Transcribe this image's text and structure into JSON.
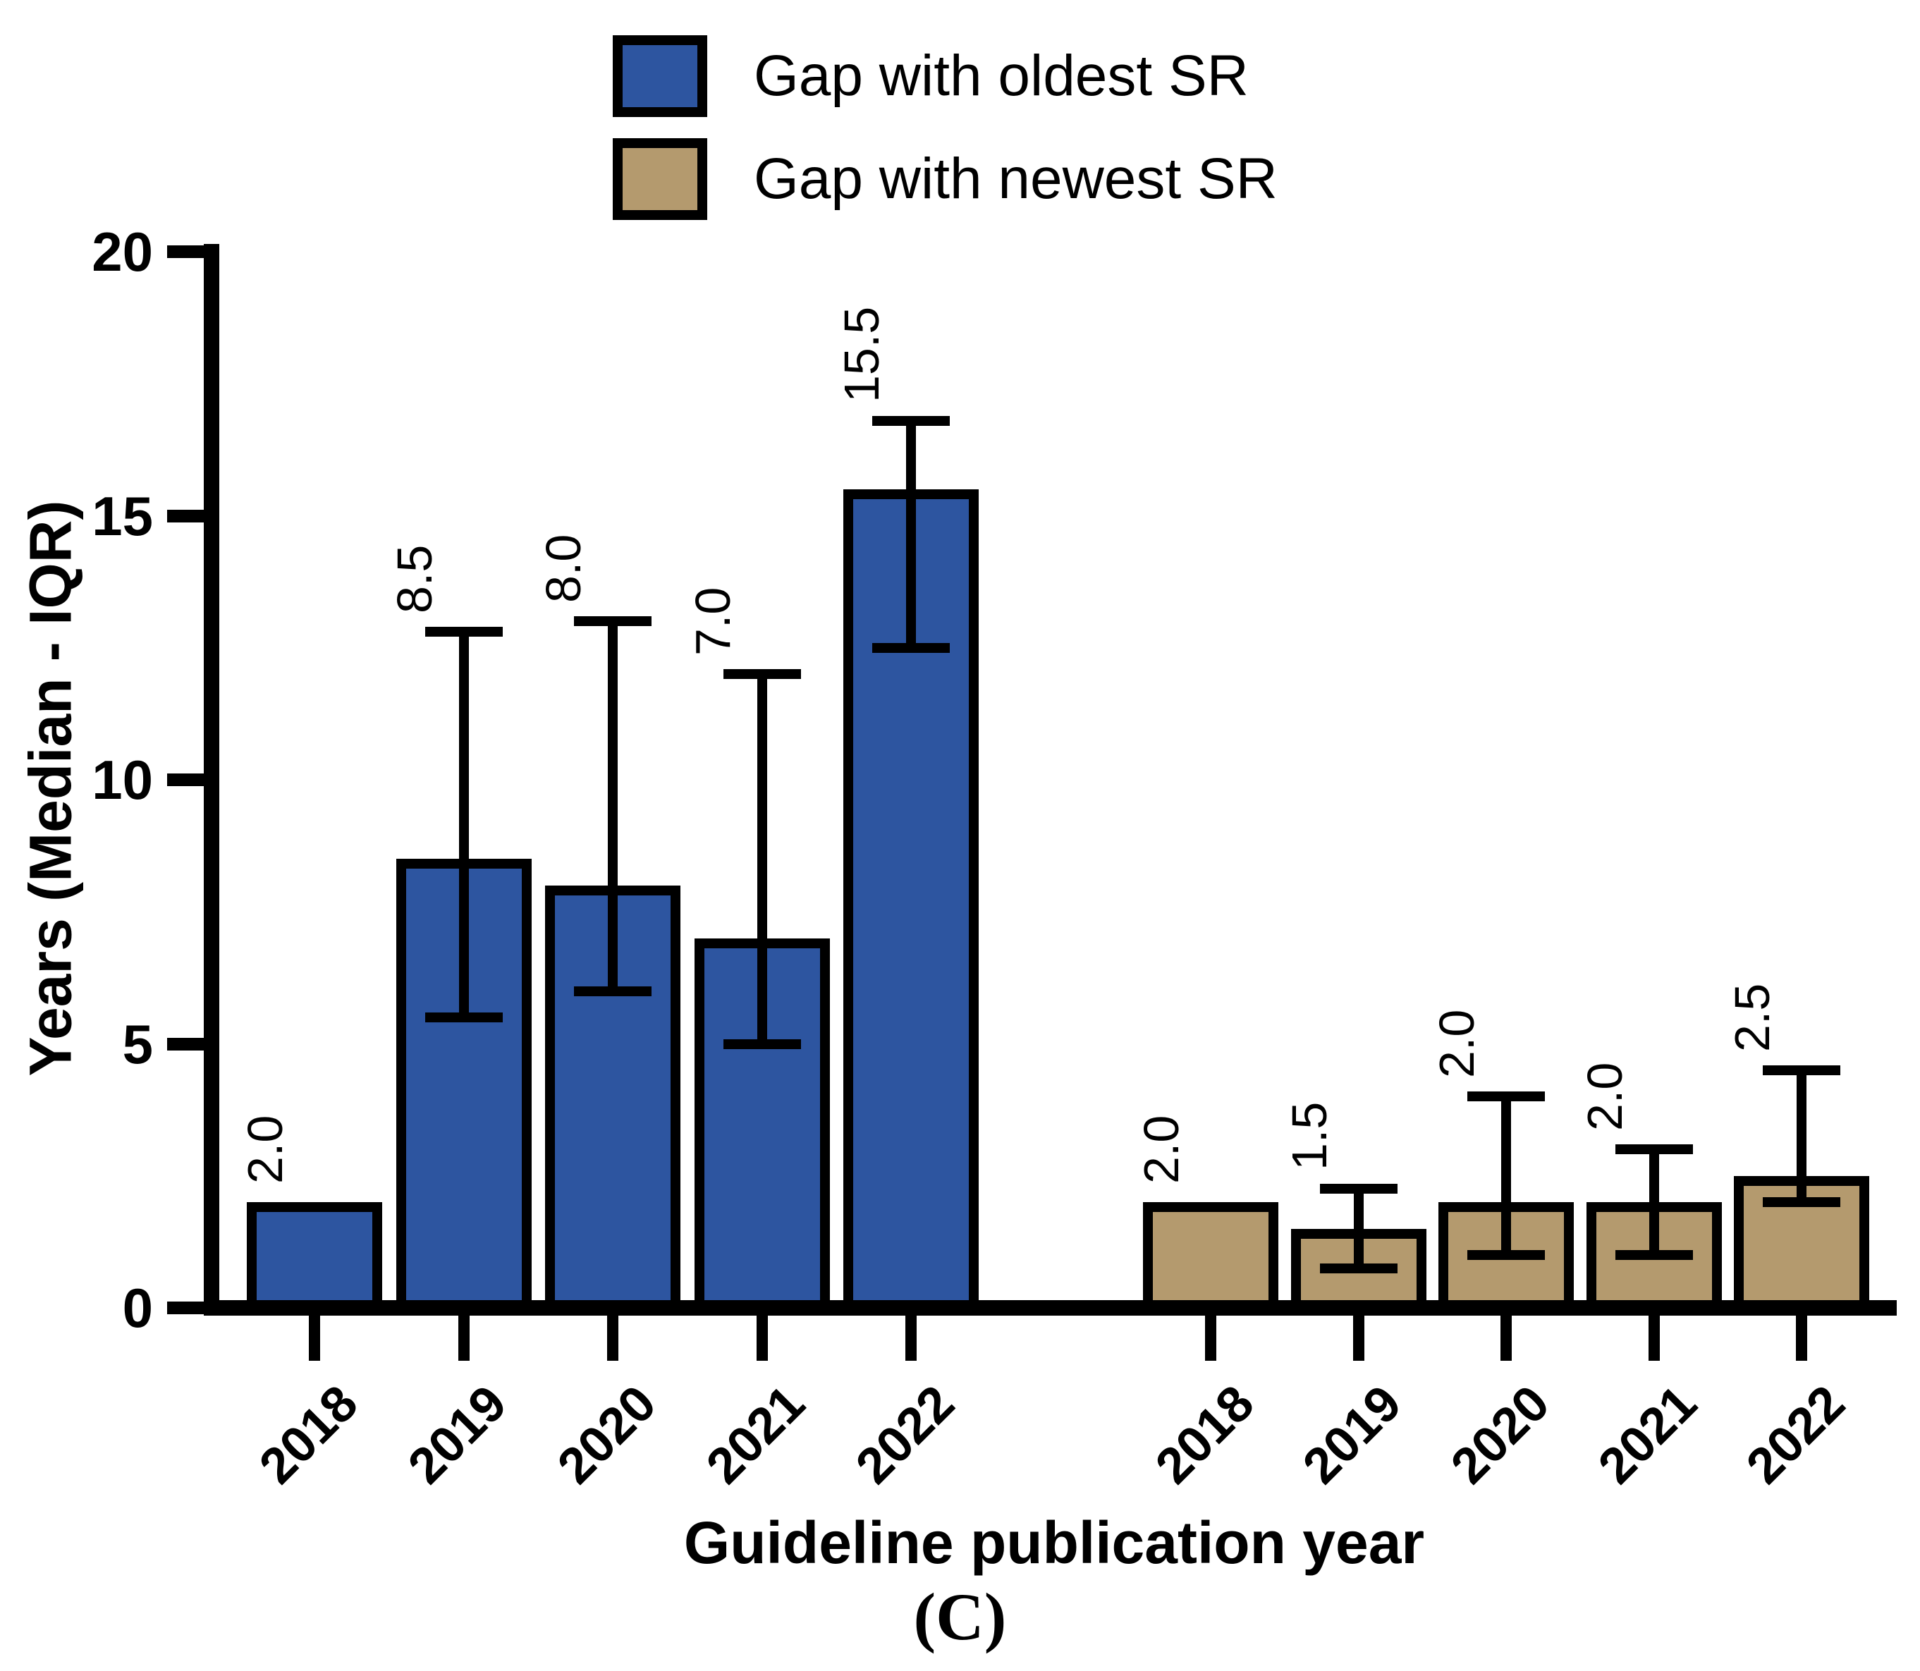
{
  "figure": {
    "caption": "(C)"
  },
  "legend": {
    "items": [
      {
        "label": "Gap with oldest SR",
        "color": "#2D55A0"
      },
      {
        "label": "Gap with newest SR",
        "color": "#B49A6E"
      }
    ]
  },
  "chart_data": {
    "type": "bar",
    "title": "",
    "xlabel": "Guideline publication year",
    "ylabel": "Years (Median - IQR)",
    "ylim": [
      0,
      20
    ],
    "yticks": [
      0,
      5,
      10,
      15,
      20
    ],
    "categories": [
      "2018",
      "2019",
      "2020",
      "2021",
      "2022"
    ],
    "error_type": "IQR (asymmetric whiskers, caps)",
    "grid": false,
    "legend_position": "top",
    "series": [
      {
        "name": "Gap with oldest SR",
        "color": "#2D55A0",
        "medians": [
          2.0,
          8.5,
          8.0,
          7.0,
          15.5
        ],
        "q1": [
          null,
          5.5,
          6.0,
          5.0,
          12.5
        ],
        "q3": [
          null,
          12.8,
          13.0,
          12.0,
          16.8
        ],
        "labels": [
          "2.0",
          "8.5",
          "8.0",
          "7.0",
          "15.5"
        ]
      },
      {
        "name": "Gap with newest SR",
        "color": "#B49A6E",
        "medians": [
          2.0,
          1.5,
          2.0,
          2.0,
          2.5
        ],
        "q1": [
          null,
          0.75,
          1.0,
          1.0,
          2.0
        ],
        "q3": [
          null,
          2.25,
          4.0,
          3.0,
          4.5
        ],
        "labels": [
          "2.0",
          "1.5",
          "2.0",
          "2.0",
          "2.5"
        ]
      }
    ]
  }
}
